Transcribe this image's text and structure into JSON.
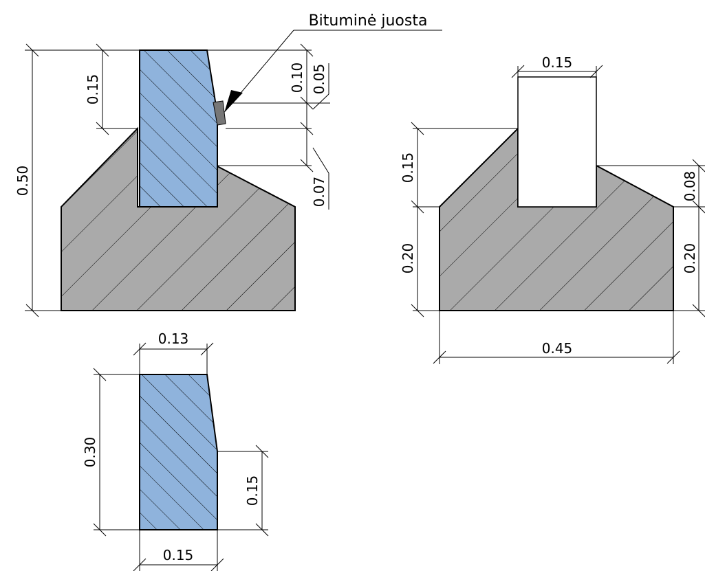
{
  "label": {
    "text": "Bituminė juosta"
  },
  "colors": {
    "concrete": "#aaaaaa",
    "curb": "#8fb3dc",
    "strip": "#777777",
    "line": "#000000"
  },
  "views": {
    "assembly": {
      "dims": {
        "total_height": "0.50",
        "curb_above": "0.15",
        "strip_top": "0.10",
        "strip_height": "0.05",
        "gap": "0.07"
      }
    },
    "base": {
      "dims": {
        "slot_width": "0.15",
        "slot_depth": "0.15",
        "shoulder": "0.08",
        "base_left": "0.20",
        "base_right": "0.20",
        "base_width": "0.45"
      }
    },
    "curb": {
      "dims": {
        "top_width": "0.13",
        "height": "0.30",
        "straight_part": "0.15",
        "bottom_width": "0.15"
      }
    }
  }
}
